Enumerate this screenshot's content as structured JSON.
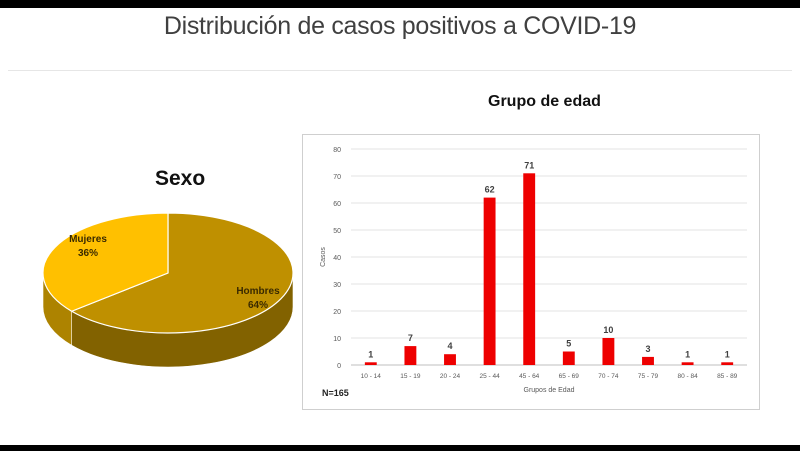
{
  "title": "Distribución de casos positivos a COVID-19",
  "chart_data": [
    {
      "type": "pie",
      "title": "Sexo",
      "slices": [
        {
          "label": "Hombres",
          "value": 64,
          "pct_label": "64%",
          "color": "#bf9000"
        },
        {
          "label": "Mujeres",
          "value": 36,
          "pct_label": "36%",
          "color": "#ffc000"
        }
      ]
    },
    {
      "type": "bar",
      "title": "Grupo de edad",
      "xlabel": "Grupos de Edad",
      "ylabel": "Casos",
      "ylim": [
        0,
        80
      ],
      "yticks": [
        0,
        10,
        20,
        30,
        40,
        50,
        60,
        70,
        80
      ],
      "grid": true,
      "color": "#ee0000",
      "categories": [
        "10 - 14",
        "15 - 19",
        "20 - 24",
        "25 - 44",
        "45 - 64",
        "65 - 69",
        "70 - 74",
        "75 - 79",
        "80 - 84",
        "85 - 89"
      ],
      "values": [
        1,
        7,
        4,
        62,
        71,
        5,
        10,
        3,
        1,
        1
      ],
      "note": "N=165"
    }
  ]
}
